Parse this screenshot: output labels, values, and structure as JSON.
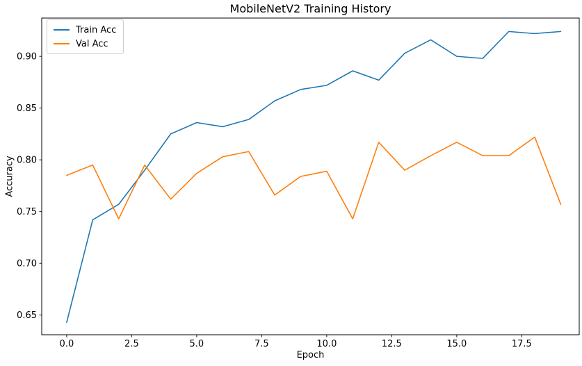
{
  "chart_data": {
    "type": "line",
    "title": "MobileNetV2 Training History",
    "xlabel": "Epoch",
    "ylabel": "Accuracy",
    "grid": false,
    "legend_position": "upper left",
    "background_color": "#ffffff",
    "spine_color": "#000000",
    "x": [
      0,
      1,
      2,
      3,
      4,
      5,
      6,
      7,
      8,
      9,
      10,
      11,
      12,
      13,
      14,
      15,
      16,
      17,
      18,
      19
    ],
    "series": [
      {
        "name": "Train Acc",
        "color": "#1f77b4",
        "values": [
          0.643,
          0.742,
          0.757,
          0.79,
          0.825,
          0.836,
          0.832,
          0.839,
          0.857,
          0.868,
          0.872,
          0.886,
          0.877,
          0.903,
          0.916,
          0.9,
          0.898,
          0.924,
          0.922,
          0.924
        ]
      },
      {
        "name": "Val Acc",
        "color": "#ff7f0e",
        "values": [
          0.785,
          0.795,
          0.743,
          0.795,
          0.762,
          0.787,
          0.803,
          0.808,
          0.766,
          0.784,
          0.789,
          0.743,
          0.817,
          0.79,
          0.804,
          0.817,
          0.804,
          0.804,
          0.822,
          0.757
        ]
      }
    ],
    "xlim": [
      -0.96,
      19.71
    ],
    "ylim": [
      0.631,
      0.937
    ],
    "xticks": {
      "values": [
        0,
        2.5,
        5,
        7.5,
        10,
        12.5,
        15,
        17.5
      ],
      "labels": [
        "0.0",
        "2.5",
        "5.0",
        "7.5",
        "10.0",
        "12.5",
        "15.0",
        "17.5"
      ]
    },
    "yticks": {
      "values": [
        0.65,
        0.7,
        0.75,
        0.8,
        0.85,
        0.9
      ],
      "labels": [
        "0.65",
        "0.70",
        "0.75",
        "0.80",
        "0.85",
        "0.90"
      ]
    }
  }
}
